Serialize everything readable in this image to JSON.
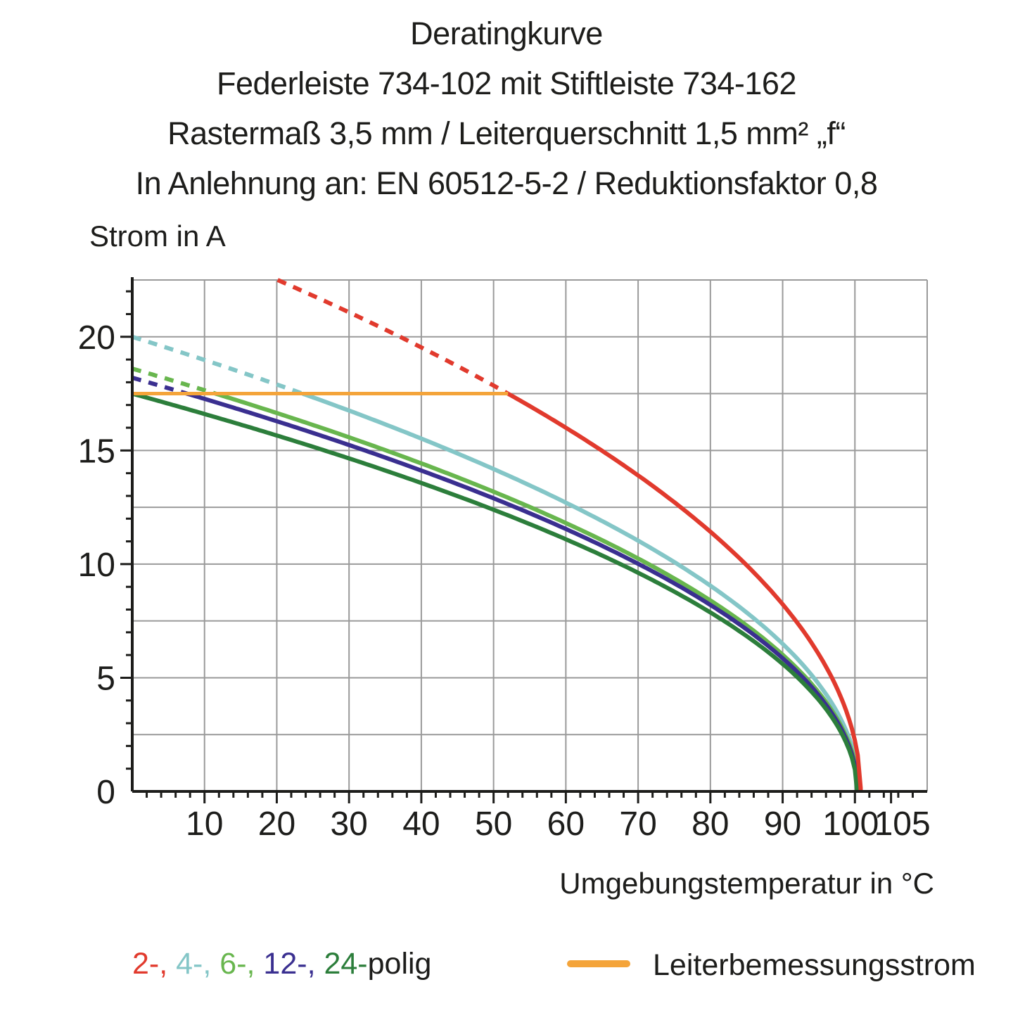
{
  "title": {
    "line1": "Deratingkurve",
    "line2": "Federleiste 734-102 mit Stiftleiste 734-162",
    "line3": "Rastermaß 3,5 mm / Leiterquerschnitt 1,5 mm² „f“",
    "line4": "In Anlehnung an: EN 60512-5-2 / Reduktionsfaktor 0,8"
  },
  "axes": {
    "y_label": "Strom in A",
    "x_label": "Umgebungstemperatur in °C"
  },
  "colors": {
    "red": "#e13a2d",
    "cyan": "#84c6c7",
    "light_green": "#68b64e",
    "dark_blue": "#3a2f90",
    "dark_green": "#2c7e3b",
    "orange": "#f4a43a",
    "grid": "#9a9a9a",
    "axis": "#1d1d1b"
  },
  "chart_data": {
    "type": "line",
    "title": "Deratingkurve",
    "xlabel": "Umgebungstemperatur in °C",
    "ylabel": "Strom in A",
    "xlim": [
      0,
      110
    ],
    "ylim": [
      0,
      22.5
    ],
    "x_tick_labels": [
      10,
      20,
      30,
      40,
      50,
      60,
      70,
      80,
      90,
      100,
      105
    ],
    "y_tick_labels": [
      0,
      5,
      10,
      15,
      20
    ],
    "x_minor_tick_interval": 2,
    "y_minor_tick_interval": 1,
    "grid_x_interval": 10,
    "grid_y_interval": 2.5,
    "grid": true,
    "legend_position": "bottom",
    "limit_line": {
      "label": "Leiterbemessungsstrom",
      "value_A": 17.5,
      "x_range_C": [
        0,
        52
      ],
      "color_key": "orange"
    },
    "style_note": "curves are dashed above the 17.5 A Leiterbemessungsstrom limit and solid below it; model I(T)=I0*sqrt(1-T/T_end)",
    "series": [
      {
        "name": "2-polig",
        "color_key": "red",
        "I0_A": 25.15,
        "T_end_C": 100.8,
        "dashed_above_A": 17.5,
        "points": [
          [
            20.1,
            22.5
          ],
          [
            30,
            21.0
          ],
          [
            40,
            19.5
          ],
          [
            50,
            17.8
          ],
          [
            52,
            17.5
          ],
          [
            60,
            16.0
          ],
          [
            70,
            13.9
          ],
          [
            80,
            11.4
          ],
          [
            90,
            8.2
          ],
          [
            95,
            6.0
          ],
          [
            100,
            2.2
          ],
          [
            100.8,
            0
          ]
        ]
      },
      {
        "name": "4-polig",
        "color_key": "cyan",
        "I0_A": 20.0,
        "T_end_C": 100.6,
        "dashed_above_A": 17.5,
        "points": [
          [
            0,
            20.0
          ],
          [
            10,
            19.0
          ],
          [
            20,
            17.9
          ],
          [
            23.6,
            17.5
          ],
          [
            30,
            16.8
          ],
          [
            40,
            15.5
          ],
          [
            50,
            14.2
          ],
          [
            60,
            12.7
          ],
          [
            70,
            11.0
          ],
          [
            80,
            9.1
          ],
          [
            90,
            6.5
          ],
          [
            100,
            1.5
          ],
          [
            100.6,
            0
          ]
        ]
      },
      {
        "name": "6-polig",
        "color_key": "light_green",
        "I0_A": 18.6,
        "T_end_C": 100.5,
        "dashed_above_A": 17.5,
        "points": [
          [
            0,
            18.6
          ],
          [
            11.5,
            17.5
          ],
          [
            20,
            16.6
          ],
          [
            40,
            14.4
          ],
          [
            60,
            11.8
          ],
          [
            80,
            8.4
          ],
          [
            90,
            6.0
          ],
          [
            100,
            1.3
          ],
          [
            100.5,
            0
          ]
        ]
      },
      {
        "name": "12-polig",
        "color_key": "dark_blue",
        "I0_A": 18.2,
        "T_end_C": 100.4,
        "dashed_above_A": 17.5,
        "points": [
          [
            0,
            18.2
          ],
          [
            7.6,
            17.5
          ],
          [
            20,
            16.3
          ],
          [
            40,
            14.1
          ],
          [
            60,
            11.5
          ],
          [
            80,
            8.2
          ],
          [
            90,
            5.9
          ],
          [
            100,
            1.1
          ],
          [
            100.4,
            0
          ]
        ]
      },
      {
        "name": "24-polig",
        "color_key": "dark_green",
        "I0_A": 17.5,
        "T_end_C": 100.3,
        "dashed_above_A": 17.5,
        "points": [
          [
            0,
            17.5
          ],
          [
            20,
            15.6
          ],
          [
            40,
            13.6
          ],
          [
            60,
            11.1
          ],
          [
            80,
            7.9
          ],
          [
            90,
            5.6
          ],
          [
            100,
            0.9
          ],
          [
            100.3,
            0
          ]
        ]
      }
    ]
  },
  "legend": {
    "pole_items": [
      {
        "label": "2-,",
        "color_key": "red"
      },
      {
        "label": "4-,",
        "color_key": "cyan"
      },
      {
        "label": "6-,",
        "color_key": "light_green"
      },
      {
        "label": "12-,",
        "color_key": "dark_blue"
      },
      {
        "label": "24-",
        "color_key": "dark_green"
      }
    ],
    "pole_suffix": "polig",
    "limit_label": "Leiterbemessungsstrom"
  }
}
